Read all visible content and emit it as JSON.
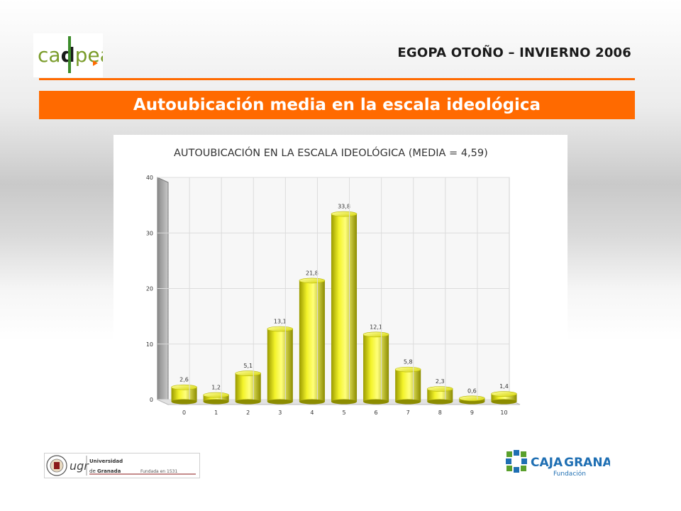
{
  "header": {
    "title": "EGOPA OTOÑO – INVIERNO 2006",
    "logo_text": "cadpea"
  },
  "banner": {
    "title": "Autoubicación media en la escala ideológica"
  },
  "chart_data": {
    "type": "bar",
    "title": "AUTOUBICACIÓN EN LA ESCALA IDEOLÓGICA (MEDIA = 4,59)",
    "categories": [
      "0",
      "1",
      "2",
      "3",
      "4",
      "5",
      "6",
      "7",
      "8",
      "9",
      "10"
    ],
    "values": [
      2.6,
      1.2,
      5.1,
      13.1,
      21.8,
      33.8,
      12.1,
      5.8,
      2.3,
      0.6,
      1.4
    ],
    "value_labels": [
      "2,6",
      "1,2",
      "5,1",
      "13,1",
      "21,8",
      "33,8",
      "12,1",
      "5,8",
      "2,3",
      "0,6",
      "1,4"
    ],
    "yticks": [
      0,
      10,
      20,
      30,
      40
    ],
    "ylim": [
      0,
      40
    ],
    "xlabel": "",
    "ylabel": "",
    "grid": true,
    "bar_color": "#dede10"
  },
  "footer": {
    "ugr_logo": {
      "brand": "ugr",
      "line1": "Universidad",
      "line2a": "de ",
      "line2b": "Granada",
      "founded": "Fundada en 1531"
    },
    "caja_logo": {
      "caja": "CAJA",
      "granada": "GRANADA",
      "fundacion": "Fundación"
    }
  }
}
